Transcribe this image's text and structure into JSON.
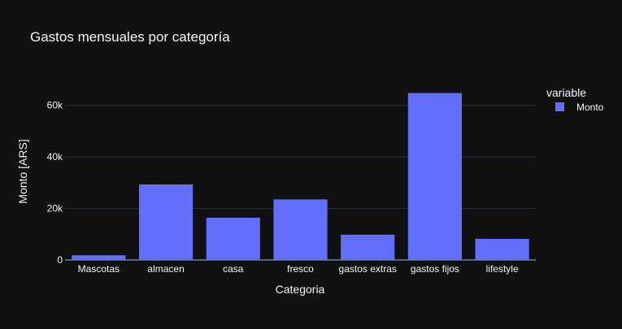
{
  "chart_data": {
    "type": "bar",
    "title": "Gastos mensuales por categoría",
    "xlabel": "Categoria",
    "ylabel": "Monto [ARS]",
    "categories": [
      "Mascotas",
      "almacen",
      "casa",
      "fresco",
      "gastos extras",
      "gastos fijos",
      "lifestyle"
    ],
    "series": [
      {
        "name": "Monto",
        "values": [
          1800,
          29300,
          16400,
          23500,
          9800,
          64800,
          8200
        ]
      }
    ],
    "ylim": [
      0,
      70000
    ],
    "yticks": [
      0,
      20000,
      40000,
      60000
    ],
    "ytick_labels": [
      "0",
      "20k",
      "40k",
      "60k"
    ],
    "grid": true,
    "legend": {
      "title": "variable",
      "position": "top-right"
    },
    "colors": {
      "background": "#111111",
      "bar": "#636efa",
      "grid": "#283442",
      "text": "#f2f5fa"
    }
  }
}
